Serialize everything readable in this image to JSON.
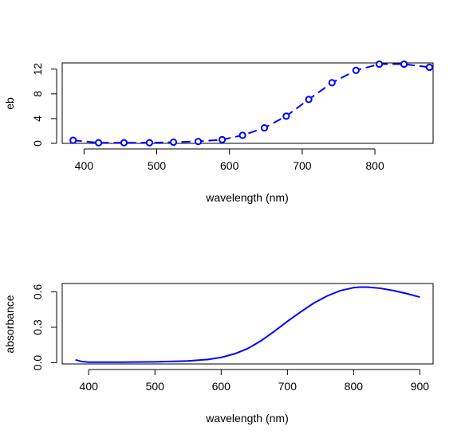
{
  "chart_data": [
    {
      "type": "line",
      "markers": "open-circle",
      "line_style": "dashed",
      "color": "#0000ff",
      "xlabel": "wavelength (nm)",
      "ylabel": "eb",
      "xlim": [
        370,
        880
      ],
      "ylim": [
        0,
        13
      ],
      "xticks": [
        400,
        500,
        600,
        700,
        800
      ],
      "yticks": [
        0,
        4,
        8,
        12
      ],
      "series": [
        {
          "x": [
            385,
            420,
            455,
            490,
            523,
            557,
            590,
            618,
            648,
            678,
            709,
            741,
            774,
            806,
            840,
            875
          ],
          "y": [
            0.5,
            0.1,
            0.1,
            0.1,
            0.2,
            0.3,
            0.6,
            1.3,
            2.5,
            4.4,
            7.1,
            9.8,
            11.8,
            12.8,
            12.8,
            12.3
          ]
        }
      ]
    },
    {
      "type": "line",
      "color": "#0000ff",
      "xlabel": "wavelength (nm)",
      "ylabel": "absorbance",
      "xlim": [
        360,
        920
      ],
      "ylim": [
        -0.01,
        0.67
      ],
      "xticks": [
        400,
        500,
        600,
        700,
        800,
        900
      ],
      "yticks": [
        0.0,
        0.3,
        0.6
      ],
      "ytick_labels": [
        "0.0",
        "0.3",
        "0.6"
      ],
      "series": [
        {
          "x": [
            380,
            390,
            400,
            450,
            500,
            550,
            580,
            600,
            620,
            640,
            660,
            680,
            700,
            720,
            740,
            760,
            780,
            800,
            810,
            820,
            840,
            860,
            880,
            900
          ],
          "y": [
            0.025,
            0.01,
            0.005,
            0.005,
            0.008,
            0.015,
            0.028,
            0.045,
            0.075,
            0.12,
            0.185,
            0.265,
            0.35,
            0.43,
            0.505,
            0.565,
            0.61,
            0.635,
            0.64,
            0.64,
            0.63,
            0.61,
            0.585,
            0.555
          ]
        }
      ]
    }
  ]
}
